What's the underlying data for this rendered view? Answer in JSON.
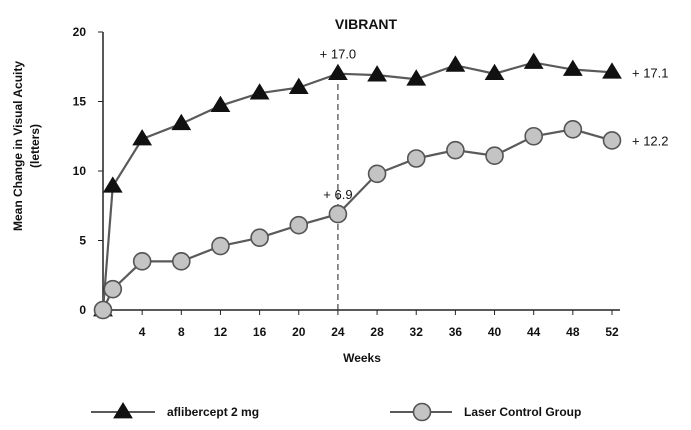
{
  "chart_data": {
    "type": "line",
    "title": "VIBRANT",
    "xlabel": "Weeks",
    "ylabel_line1": "Mean Change in Visual Acuity",
    "ylabel_line2": "(letters)",
    "xlim": [
      0,
      52
    ],
    "ylim": [
      0,
      20
    ],
    "x_ticks": [
      4,
      8,
      12,
      16,
      20,
      24,
      28,
      32,
      36,
      40,
      44,
      48,
      52
    ],
    "y_ticks": [
      0,
      5,
      10,
      15,
      20
    ],
    "grid": false,
    "legend_position": "bottom",
    "series": [
      {
        "name": "aflibercept 2 mg",
        "marker": "triangle",
        "x": [
          0,
          1,
          4,
          8,
          12,
          16,
          20,
          24,
          28,
          32,
          36,
          40,
          44,
          48,
          52
        ],
        "y": [
          0,
          8.9,
          12.3,
          13.4,
          14.7,
          15.6,
          16.0,
          17.0,
          16.9,
          16.6,
          17.6,
          17.0,
          17.8,
          17.3,
          17.1
        ]
      },
      {
        "name": "Laser Control Group",
        "marker": "circle",
        "x": [
          0,
          1,
          4,
          8,
          12,
          16,
          20,
          24,
          28,
          32,
          36,
          40,
          44,
          48,
          52
        ],
        "y": [
          0,
          1.5,
          3.5,
          3.5,
          4.6,
          5.2,
          6.1,
          6.9,
          9.8,
          10.9,
          11.5,
          11.1,
          12.5,
          13.0,
          12.2
        ]
      }
    ],
    "annotations": [
      {
        "x": 24,
        "y": 17.0,
        "text": "+ 17.0",
        "place": "above"
      },
      {
        "x": 24,
        "y": 6.9,
        "text": "+ 6.9",
        "place": "above"
      },
      {
        "x": 52,
        "y": 17.1,
        "text": "+ 17.1",
        "place": "right"
      },
      {
        "x": 52,
        "y": 12.2,
        "text": "+ 12.2",
        "place": "right"
      }
    ],
    "reference_line": {
      "x": 24,
      "from_y": 0,
      "to_y": 17.0,
      "style": "dashed"
    }
  }
}
